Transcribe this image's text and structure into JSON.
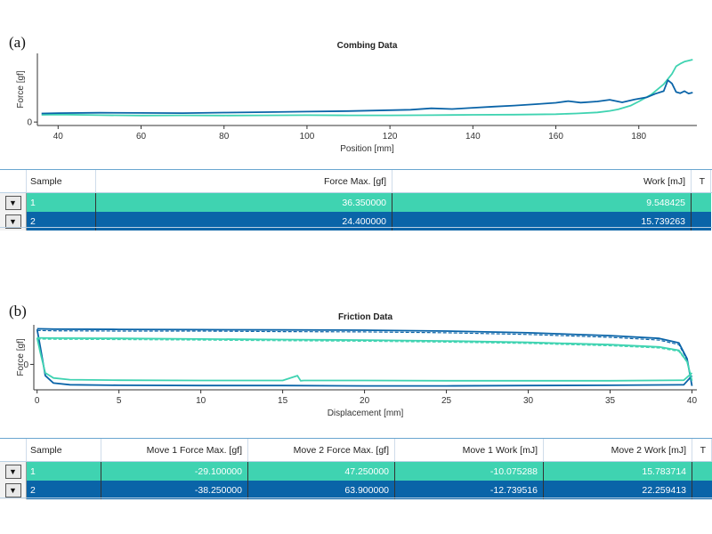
{
  "panels": [
    {
      "label": "(a)",
      "chart_data": {
        "type": "line",
        "title": "Combing Data",
        "xlabel": "Position [mm]",
        "ylabel": "Force [gf]",
        "xlim": [
          35,
          194
        ],
        "ylim": [
          -2,
          40
        ],
        "xticks": [
          40,
          60,
          80,
          100,
          120,
          140,
          160,
          180
        ],
        "yticks": [
          0
        ],
        "grid": false,
        "series": [
          {
            "sample": "1",
            "color": "#3fd3b1",
            "x": [
              36,
              40,
              50,
              60,
              70,
              80,
              90,
              100,
              110,
              120,
              130,
              140,
              150,
              160,
              165,
              170,
              173,
              175,
              178,
              180,
              183,
              186,
              188,
              189,
              190,
              191,
              192,
              193
            ],
            "y": [
              4.2,
              4.4,
              4.0,
              3.8,
              3.9,
              3.8,
              3.9,
              4.0,
              3.9,
              3.9,
              4.0,
              4.2,
              4.3,
              4.6,
              5.0,
              5.6,
              6.5,
              7.4,
              9.5,
              12.0,
              16.0,
              22.0,
              28.0,
              32.5,
              34.0,
              35.2,
              35.8,
              36.35
            ]
          },
          {
            "sample": "2",
            "color": "#0a64a8",
            "x": [
              36,
              40,
              50,
              60,
              70,
              80,
              90,
              100,
              110,
              120,
              125,
              130,
              135,
              140,
              145,
              150,
              155,
              160,
              163,
              166,
              170,
              173,
              176,
              179,
              182,
              184,
              186,
              187,
              188,
              189,
              190,
              191,
              192,
              193
            ],
            "y": [
              5.0,
              5.2,
              5.4,
              5.3,
              5.2,
              5.5,
              5.8,
              6.1,
              6.4,
              6.9,
              7.2,
              8.0,
              7.6,
              8.3,
              9.0,
              9.6,
              10.4,
              11.2,
              12.2,
              11.3,
              12.0,
              13.0,
              11.5,
              13.2,
              14.5,
              16.5,
              18.0,
              24.4,
              22.5,
              17.5,
              16.8,
              18.0,
              16.6,
              17.2
            ]
          }
        ]
      },
      "table": {
        "columns": [
          "Sample",
          "Force Max. [gf]",
          "Work [mJ]",
          "T"
        ],
        "rows": [
          {
            "sample": "1",
            "values": [
              "36.350000",
              "9.548425"
            ]
          },
          {
            "sample": "2",
            "values": [
              "24.400000",
              "15.739263"
            ]
          }
        ]
      }
    },
    {
      "label": "(b)",
      "chart_data": {
        "type": "line",
        "title": "Friction Data",
        "xlabel": "Displacement [mm]",
        "ylabel": "Force [gf]",
        "xlim": [
          -0.2,
          40.3
        ],
        "ylim": [
          -45,
          70
        ],
        "xticks": [
          0,
          5,
          10,
          15,
          20,
          25,
          30,
          35,
          40
        ],
        "yticks": [
          0
        ],
        "grid": false,
        "series": [
          {
            "sample": "2",
            "color": "#0a64a8",
            "style": "solid",
            "x": [
              0,
              1,
              5,
              10,
              15,
              20,
              25,
              30,
              35,
              38,
              39.2,
              39.7,
              40
            ],
            "y": [
              63,
              62.5,
              62,
              61.5,
              61,
              60.5,
              59,
              56,
              51,
              46,
              38,
              10,
              -38
            ]
          },
          {
            "sample": "2",
            "color": "#0a64a8",
            "style": "dashed",
            "x": [
              0,
              1,
              5,
              10,
              15,
              20,
              25,
              30,
              35,
              38,
              39.2,
              39.7,
              40
            ],
            "y": [
              60,
              59.5,
              59,
              59,
              58,
              57.5,
              56,
              53,
              48,
              43,
              35,
              8,
              -36
            ]
          },
          {
            "sample": "2",
            "color": "#0a64a8",
            "style": "solid",
            "x": [
              0,
              0.2,
              0.5,
              1,
              2,
              5,
              10,
              15,
              20,
              25,
              30,
              35,
              39.5,
              40
            ],
            "y": [
              62,
              30,
              -20,
              -33,
              -36,
              -37,
              -37.5,
              -37.5,
              -38,
              -38,
              -37.5,
              -37,
              -36,
              -20
            ]
          },
          {
            "sample": "1",
            "color": "#3fd3b1",
            "style": "solid",
            "x": [
              0,
              1,
              5,
              10,
              15,
              20,
              25,
              30,
              35,
              38,
              39.2,
              39.7,
              40
            ],
            "y": [
              47,
              46.5,
              46,
              45,
              44,
              43,
              41.5,
              39,
              35,
              31,
              25,
              5,
              -29
            ]
          },
          {
            "sample": "1",
            "color": "#3fd3b1",
            "style": "dashed",
            "x": [
              0,
              1,
              5,
              10,
              15,
              20,
              25,
              30,
              35,
              38,
              39.2,
              39.7,
              40
            ],
            "y": [
              45,
              44.5,
              44,
              43,
              42,
              41,
              39.5,
              37,
              33,
              29,
              23,
              4,
              -28
            ]
          },
          {
            "sample": "1",
            "color": "#3fd3b1",
            "style": "solid",
            "x": [
              0,
              0.2,
              0.5,
              1,
              2,
              5,
              10,
              15,
              15.9,
              16.1,
              16.3,
              20,
              25,
              30,
              35,
              39.5,
              40
            ],
            "y": [
              47,
              20,
              -15,
              -24,
              -27,
              -28,
              -28.5,
              -28.5,
              -20,
              -29,
              -28.5,
              -28.5,
              -29,
              -29,
              -29,
              -28,
              -15
            ]
          }
        ]
      },
      "table": {
        "columns": [
          "Sample",
          "Move 1 Force Max. [gf]",
          "Move 2 Force Max. [gf]",
          "Move 1 Work [mJ]",
          "Move 2 Work [mJ]",
          "T"
        ],
        "rows": [
          {
            "sample": "1",
            "values": [
              "-29.100000",
              "47.250000",
              "-10.075288",
              "15.783714"
            ]
          },
          {
            "sample": "2",
            "values": [
              "-38.250000",
              "63.900000",
              "-12.739516",
              "22.259413"
            ]
          }
        ]
      }
    }
  ],
  "icons": {
    "expander": "expand-triangle-icon"
  }
}
